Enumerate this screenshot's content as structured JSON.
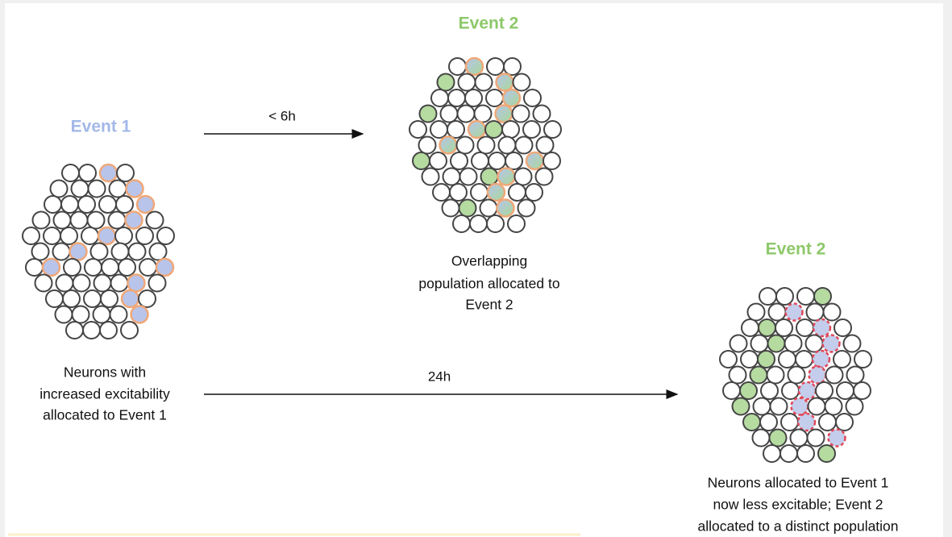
{
  "event1": {
    "title": "Event 1",
    "caption": [
      "Neurons with",
      "increased excitability",
      "allocated to Event 1"
    ]
  },
  "event2_short": {
    "title": "Event 2",
    "interval": "< 6h",
    "caption": [
      "Overlapping",
      "population allocated to",
      "Event 2"
    ]
  },
  "event2_long": {
    "title": "Event 2",
    "interval": "24h",
    "caption": [
      "Neurons allocated to Event 1",
      "now less excitable; Event 2",
      "allocated to a distinct population"
    ]
  }
}
